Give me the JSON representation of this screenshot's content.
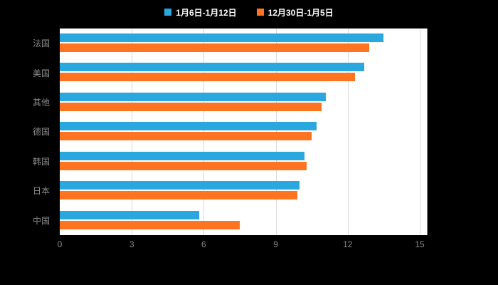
{
  "legend": {
    "items": [
      {
        "label": "1月6日-1月12日",
        "color": "#2aa7de"
      },
      {
        "label": "12月30日-1月5日",
        "color": "#ff7420"
      }
    ]
  },
  "chart_data": {
    "type": "bar",
    "orientation": "horizontal",
    "title": "",
    "xlabel": "",
    "ylabel": "",
    "categories": [
      "法国",
      "美国",
      "其他",
      "德国",
      "韩国",
      "日本",
      "中国"
    ],
    "series": [
      {
        "name": "1月6日-1月12日",
        "color": "#2aa7de",
        "values": [
          13.5,
          12.7,
          11.1,
          10.7,
          10.2,
          10.0,
          5.8
        ]
      },
      {
        "name": "12月30日-1月5日",
        "color": "#ff7420",
        "values": [
          12.9,
          12.3,
          10.9,
          10.5,
          10.3,
          9.9,
          7.5
        ]
      }
    ],
    "xlim": [
      0,
      15
    ],
    "xticks": [
      0,
      3,
      6,
      9,
      12,
      15
    ],
    "grid": true,
    "legend_position": "top",
    "plot_background": "#ffffff",
    "page_background": "#000000"
  },
  "colors": {
    "grid": "#d9d9d9",
    "axis": "#999999",
    "tick_label": "#8a8a8a",
    "legend_text": "#ffffff"
  }
}
